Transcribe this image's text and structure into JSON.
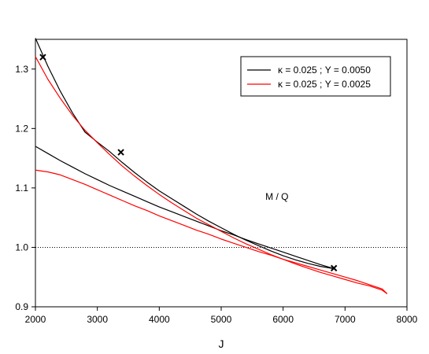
{
  "chart_data": {
    "type": "line",
    "title": "",
    "xlabel": "J",
    "ylabel": "",
    "xlim": [
      2000,
      8000
    ],
    "ylim": [
      0.9,
      1.35
    ],
    "x_ticks": [
      2000,
      3000,
      4000,
      5000,
      6000,
      7000,
      8000
    ],
    "y_ticks": [
      0.9,
      1.0,
      1.1,
      1.2,
      1.3
    ],
    "x_tick_labels": [
      "2000",
      "3000",
      "4000",
      "5000",
      "6000",
      "7000",
      "8000"
    ],
    "y_tick_labels": [
      "0.9",
      "1.0",
      "1.1",
      "1.2",
      "1.3"
    ],
    "grid": false,
    "legend_position": "top-right",
    "annotation": "M / Q",
    "reference_line": {
      "y": 1.0,
      "style": "dotted",
      "color": "#000000"
    },
    "legend": [
      {
        "label": "κ = 0.025 ; Y = 0.0050",
        "color": "#000000"
      },
      {
        "label": "κ = 0.025 ; Y = 0.0025",
        "color": "#ff0000"
      }
    ],
    "series": [
      {
        "color": "#000000",
        "points": [
          [
            2000,
            1.352
          ],
          [
            2200,
            1.305
          ],
          [
            2400,
            1.263
          ],
          [
            2600,
            1.226
          ],
          [
            2800,
            1.194
          ],
          [
            3000,
            1.177
          ],
          [
            3200,
            1.161
          ],
          [
            3400,
            1.143
          ],
          [
            3600,
            1.126
          ],
          [
            3800,
            1.11
          ],
          [
            4000,
            1.095
          ],
          [
            4200,
            1.082
          ],
          [
            4400,
            1.069
          ],
          [
            4600,
            1.056
          ],
          [
            4800,
            1.044
          ],
          [
            5000,
            1.033
          ],
          [
            5200,
            1.022
          ],
          [
            5400,
            1.012
          ],
          [
            5600,
            1.003
          ],
          [
            5800,
            0.994
          ],
          [
            6000,
            0.986
          ],
          [
            6200,
            0.979
          ],
          [
            6400,
            0.973
          ],
          [
            6600,
            0.968
          ],
          [
            6830,
            0.964
          ]
        ]
      },
      {
        "color": "#000000",
        "points": [
          [
            2000,
            1.17
          ],
          [
            2200,
            1.158
          ],
          [
            2400,
            1.146
          ],
          [
            2600,
            1.135
          ],
          [
            2800,
            1.124
          ],
          [
            3000,
            1.114
          ],
          [
            3200,
            1.104
          ],
          [
            3400,
            1.095
          ],
          [
            3600,
            1.086
          ],
          [
            3800,
            1.077
          ],
          [
            4000,
            1.068
          ],
          [
            4200,
            1.06
          ],
          [
            4400,
            1.052
          ],
          [
            4600,
            1.044
          ],
          [
            4800,
            1.036
          ],
          [
            5000,
            1.028
          ],
          [
            5200,
            1.021
          ],
          [
            5400,
            1.013
          ],
          [
            5600,
            1.006
          ],
          [
            5800,
            0.999
          ],
          [
            6000,
            0.992
          ],
          [
            6200,
            0.985
          ],
          [
            6400,
            0.978
          ],
          [
            6600,
            0.971
          ],
          [
            6830,
            0.964
          ]
        ]
      },
      {
        "color": "#ff0000",
        "points": [
          [
            2000,
            1.321
          ],
          [
            2200,
            1.283
          ],
          [
            2400,
            1.251
          ],
          [
            2600,
            1.222
          ],
          [
            2800,
            1.197
          ],
          [
            3000,
            1.176
          ],
          [
            3200,
            1.156
          ],
          [
            3400,
            1.137
          ],
          [
            3600,
            1.12
          ],
          [
            3800,
            1.104
          ],
          [
            4000,
            1.089
          ],
          [
            4200,
            1.075
          ],
          [
            4400,
            1.062
          ],
          [
            4600,
            1.049
          ],
          [
            4800,
            1.038
          ],
          [
            5000,
            1.027
          ],
          [
            5200,
            1.016
          ],
          [
            5400,
            1.006
          ],
          [
            5600,
            0.997
          ],
          [
            5800,
            0.988
          ],
          [
            6000,
            0.98
          ],
          [
            6200,
            0.972
          ],
          [
            6400,
            0.965
          ],
          [
            6600,
            0.958
          ],
          [
            6800,
            0.952
          ],
          [
            7000,
            0.946
          ],
          [
            7200,
            0.94
          ],
          [
            7400,
            0.935
          ],
          [
            7600,
            0.928
          ],
          [
            7680,
            0.922
          ]
        ]
      },
      {
        "color": "#ff0000",
        "points": [
          [
            2000,
            1.13
          ],
          [
            2200,
            1.127
          ],
          [
            2400,
            1.122
          ],
          [
            2600,
            1.114
          ],
          [
            2800,
            1.106
          ],
          [
            3000,
            1.097
          ],
          [
            3200,
            1.088
          ],
          [
            3400,
            1.079
          ],
          [
            3600,
            1.07
          ],
          [
            3800,
            1.062
          ],
          [
            4000,
            1.053
          ],
          [
            4200,
            1.045
          ],
          [
            4400,
            1.037
          ],
          [
            4600,
            1.029
          ],
          [
            4800,
            1.022
          ],
          [
            5000,
            1.014
          ],
          [
            5200,
            1.007
          ],
          [
            5400,
            1.0
          ],
          [
            5600,
            0.993
          ],
          [
            5800,
            0.987
          ],
          [
            6000,
            0.98
          ],
          [
            6200,
            0.974
          ],
          [
            6400,
            0.968
          ],
          [
            6600,
            0.962
          ],
          [
            6800,
            0.956
          ],
          [
            7000,
            0.95
          ],
          [
            7200,
            0.944
          ],
          [
            7400,
            0.937
          ],
          [
            7600,
            0.93
          ],
          [
            7680,
            0.922
          ]
        ]
      }
    ],
    "markers": [
      {
        "x": 2120,
        "y": 1.32,
        "symbol": "x"
      },
      {
        "x": 3380,
        "y": 1.16,
        "symbol": "x"
      },
      {
        "x": 6820,
        "y": 0.965,
        "symbol": "x"
      }
    ]
  }
}
